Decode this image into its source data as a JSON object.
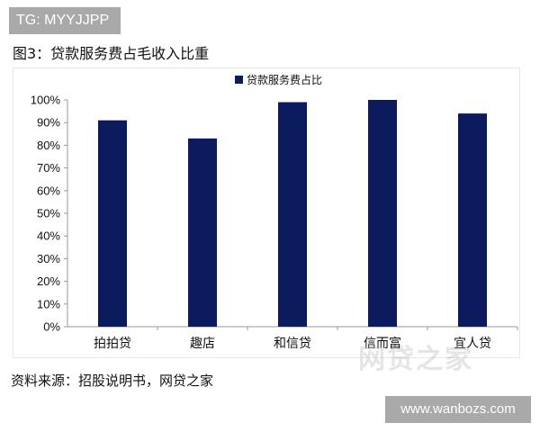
{
  "tg_badge": "TG: MYYJJPP",
  "figure_title": "图3：贷款服务费占毛收入比重",
  "source_text": "资料来源：招股说明书，网贷之家",
  "watermark_logo": "网贷之家",
  "url_badge": "www.wanbozs.com",
  "colors": {
    "bar": "#0c1b5e",
    "axis": "#999999",
    "badge": "#a9a9a9"
  },
  "chart_data": {
    "type": "bar",
    "categories": [
      "拍拍贷",
      "趣店",
      "和信贷",
      "信而富",
      "宜人贷"
    ],
    "series": [
      {
        "name": "贷款服务费占比",
        "values": [
          0.91,
          0.83,
          0.99,
          1.0,
          0.94
        ]
      }
    ],
    "ylim": [
      0,
      1.0
    ],
    "yticks": [
      0,
      0.1,
      0.2,
      0.3,
      0.4,
      0.5,
      0.6,
      0.7,
      0.8,
      0.9,
      1.0
    ],
    "ytick_labels": [
      "0%",
      "10%",
      "20%",
      "30%",
      "40%",
      "50%",
      "60%",
      "70%",
      "80%",
      "90%",
      "100%"
    ],
    "title": "",
    "xlabel": "",
    "ylabel": "",
    "legend": "top-center",
    "grid": false
  }
}
